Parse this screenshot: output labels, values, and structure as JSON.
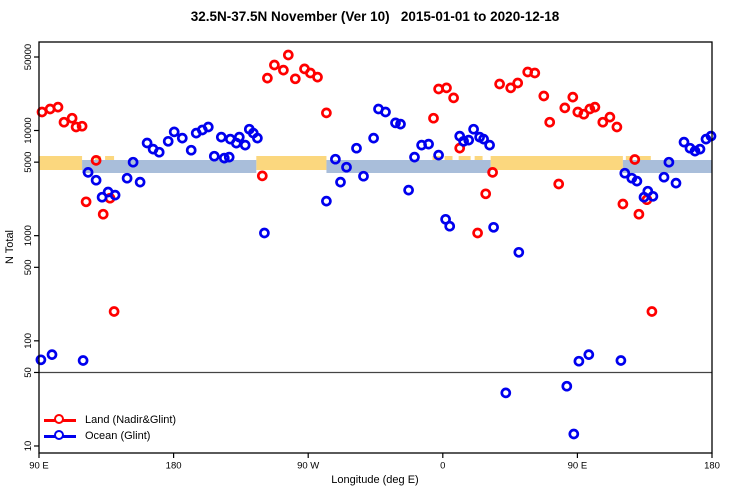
{
  "title": "32.5N-37.5N November (Ver 10)   2015-01-01 to 2020-12-18",
  "axes": {
    "x": {
      "label": "Longitude (deg E)",
      "ticks": [
        {
          "deg": 0,
          "label": "90 E"
        },
        {
          "deg": 90,
          "label": "180"
        },
        {
          "deg": 180,
          "label": "90 W"
        },
        {
          "deg": 270,
          "label": "0"
        },
        {
          "deg": 360,
          "label": "90 E"
        },
        {
          "deg": 450,
          "label": "180"
        }
      ],
      "note": "deg = degrees eastward along axis from left edge (left edge = 90E, axis wraps 450 degrees to 180)"
    },
    "y": {
      "label": "N Total",
      "scale": "log",
      "ticks": [
        {
          "value": 10,
          "label": "10"
        },
        {
          "value": 50,
          "label": "50"
        },
        {
          "value": 100,
          "label": "100"
        },
        {
          "value": 500,
          "label": "500"
        },
        {
          "value": 1000,
          "label": "1000"
        },
        {
          "value": 5000,
          "label": "5000"
        },
        {
          "value": 10000,
          "label": "10000"
        },
        {
          "value": 50000,
          "label": "50000"
        }
      ]
    }
  },
  "legend": [
    {
      "label": "Land (Nadir&Glint)",
      "color": "#ff0000"
    },
    {
      "label": "Ocean (Glint)",
      "color": "#0000ee"
    }
  ],
  "colors": {
    "land_point": "#ff0000",
    "ocean_point": "#0000ee",
    "land_band": "#fbd77e",
    "ocean_band": "#a9beda",
    "reference_line": "#444444",
    "axis": "#000000"
  },
  "chart_data": {
    "type": "scatter",
    "title": "32.5N-37.5N November (Ver 10)   2015-01-01 to 2020-12-18",
    "xlabel": "Longitude (deg E)",
    "ylabel": "N Total",
    "xlim_deg": [
      0,
      450
    ],
    "ylim": [
      10,
      60000
    ],
    "grid": false,
    "legend_position": "bottom-left",
    "reference_line_y": 50,
    "series": [
      {
        "name": "Land (Nadir&Glint)",
        "color": "#ff0000",
        "points": [
          [
            2.0,
            15000
          ],
          [
            7.4,
            16000
          ],
          [
            12.7,
            16700
          ],
          [
            16.7,
            12000
          ],
          [
            22.1,
            13100
          ],
          [
            24.8,
            10800
          ],
          [
            28.8,
            11000
          ],
          [
            38.2,
            5200
          ],
          [
            31.5,
            2100
          ],
          [
            42.9,
            1600
          ],
          [
            47.5,
            2270
          ],
          [
            50.2,
            190
          ],
          [
            149.3,
            3700
          ],
          [
            152.7,
            31500
          ],
          [
            157.4,
            42000
          ],
          [
            163.4,
            37500
          ],
          [
            166.7,
            52200
          ],
          [
            171.4,
            31000
          ],
          [
            177.5,
            38500
          ],
          [
            181.5,
            35200
          ],
          [
            186.2,
            32200
          ],
          [
            192.2,
            14700
          ],
          [
            263.8,
            13100
          ],
          [
            267.2,
            24800
          ],
          [
            272.5,
            25400
          ],
          [
            277.2,
            20400
          ],
          [
            281.3,
            6800
          ],
          [
            293.3,
            1060
          ],
          [
            298.7,
            2500
          ],
          [
            303.3,
            4000
          ],
          [
            308.0,
            27700
          ],
          [
            315.4,
            25400
          ],
          [
            320.1,
            28300
          ],
          [
            326.8,
            36000
          ],
          [
            331.5,
            35200
          ],
          [
            337.5,
            21300
          ],
          [
            341.5,
            12000
          ],
          [
            347.5,
            3100
          ],
          [
            351.6,
            16400
          ],
          [
            356.9,
            20800
          ],
          [
            360.3,
            15000
          ],
          [
            364.3,
            14300
          ],
          [
            368.3,
            16000
          ],
          [
            371.7,
            16700
          ],
          [
            377.0,
            12000
          ],
          [
            381.7,
            13400
          ],
          [
            386.4,
            10800
          ],
          [
            390.4,
            2000
          ],
          [
            398.4,
            5300
          ],
          [
            401.1,
            1600
          ],
          [
            406.5,
            2200
          ],
          [
            409.8,
            190
          ]
        ]
      },
      {
        "name": "Ocean (Glint)",
        "color": "#0000ee",
        "points": [
          [
            1.3,
            66
          ],
          [
            8.7,
            74
          ],
          [
            29.5,
            65
          ],
          [
            32.8,
            4000
          ],
          [
            38.2,
            3370
          ],
          [
            42.2,
            2320
          ],
          [
            46.2,
            2600
          ],
          [
            50.9,
            2430
          ],
          [
            58.9,
            3520
          ],
          [
            62.9,
            5000
          ],
          [
            67.6,
            3230
          ],
          [
            72.3,
            7600
          ],
          [
            76.3,
            6650
          ],
          [
            80.4,
            6220
          ],
          [
            86.4,
            7900
          ],
          [
            90.4,
            9700
          ],
          [
            95.8,
            8470
          ],
          [
            101.8,
            6500
          ],
          [
            105.1,
            9440
          ],
          [
            109.2,
            10100
          ],
          [
            113.2,
            10800
          ],
          [
            117.2,
            5700
          ],
          [
            121.9,
            8650
          ],
          [
            123.9,
            5460
          ],
          [
            127.2,
            5580
          ],
          [
            127.9,
            8280
          ],
          [
            131.9,
            7590
          ],
          [
            133.9,
            8650
          ],
          [
            137.9,
            7260
          ],
          [
            140.6,
            10300
          ],
          [
            143.3,
            9440
          ],
          [
            146.0,
            8470
          ],
          [
            150.7,
            1060
          ],
          [
            192.2,
            2130
          ],
          [
            198.2,
            5340
          ],
          [
            201.6,
            3230
          ],
          [
            205.6,
            4480
          ],
          [
            212.3,
            6790
          ],
          [
            217.0,
            3680
          ],
          [
            223.7,
            8470
          ],
          [
            227.0,
            16000
          ],
          [
            231.7,
            15000
          ],
          [
            238.4,
            11800
          ],
          [
            241.7,
            11500
          ],
          [
            247.1,
            2710
          ],
          [
            251.1,
            5580
          ],
          [
            255.8,
            7260
          ],
          [
            260.5,
            7420
          ],
          [
            267.2,
            5830
          ],
          [
            271.9,
            1430
          ],
          [
            274.6,
            1230
          ],
          [
            281.3,
            8850
          ],
          [
            283.9,
            7900
          ],
          [
            287.3,
            8110
          ],
          [
            290.6,
            10300
          ],
          [
            294.6,
            8650
          ],
          [
            297.3,
            8280
          ],
          [
            301.3,
            7260
          ],
          [
            304.0,
            1200
          ],
          [
            312.1,
            32
          ],
          [
            320.8,
            695
          ],
          [
            352.9,
            37
          ],
          [
            357.6,
            13
          ],
          [
            361.0,
            64
          ],
          [
            367.6,
            74
          ],
          [
            389.1,
            65
          ],
          [
            391.7,
            3930
          ],
          [
            396.4,
            3520
          ],
          [
            399.8,
            3300
          ],
          [
            404.5,
            2320
          ],
          [
            407.1,
            2650
          ],
          [
            410.5,
            2370
          ],
          [
            417.9,
            3600
          ],
          [
            421.2,
            5000
          ],
          [
            425.9,
            3160
          ],
          [
            431.3,
            7760
          ],
          [
            435.3,
            6790
          ],
          [
            438.6,
            6370
          ],
          [
            442.0,
            6650
          ],
          [
            446.0,
            8280
          ],
          [
            449.3,
            8850
          ]
        ]
      }
    ],
    "surface_band": {
      "description": "thin land/ocean strip drawn across the plot near N=5000",
      "value_center": 5000,
      "land_color": "#fbd77e",
      "ocean_color": "#a9beda",
      "land_segments_deg": [
        [
          0,
          28.8
        ],
        [
          37.5,
          41.5
        ],
        [
          44.2,
          50.2
        ],
        [
          145.3,
          192.2
        ],
        [
          263.1,
          268.5
        ],
        [
          271.2,
          276.5
        ],
        [
          280.6,
          288.6
        ],
        [
          291.3,
          296.6
        ],
        [
          302.0,
          390.4
        ],
        [
          392.4,
          397.1
        ],
        [
          399.8,
          409.1
        ]
      ],
      "ocean_segments_deg": [
        [
          28.8,
          145.3
        ],
        [
          192.2,
          302.0
        ],
        [
          390.4,
          450.0
        ]
      ]
    }
  }
}
